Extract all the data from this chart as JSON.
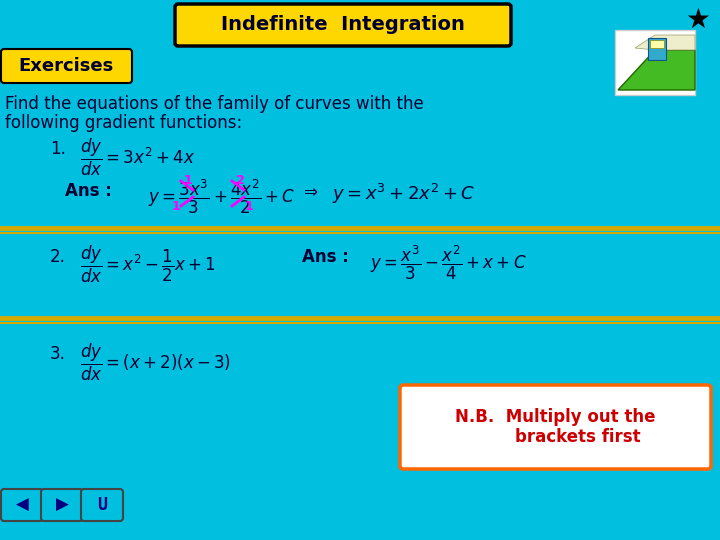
{
  "bg_color": "#00BFDF",
  "title_text": "Indefinite  Integration",
  "title_bg": "#FFD700",
  "title_border": "#000000",
  "exercises_text": "Exercises",
  "exercises_bg": "#FFD700",
  "intro_line1": "Find the equations of the family of curves with the",
  "intro_line2": "following gradient functions:",
  "separator_color": "#D4AA00",
  "font_color": "#000033",
  "magenta_color": "#FF00FF",
  "nb_text_color": "#CC0000",
  "nb_bg": "#FFFFFF",
  "nb_border": "#FF6600",
  "nav_color": "#000080"
}
